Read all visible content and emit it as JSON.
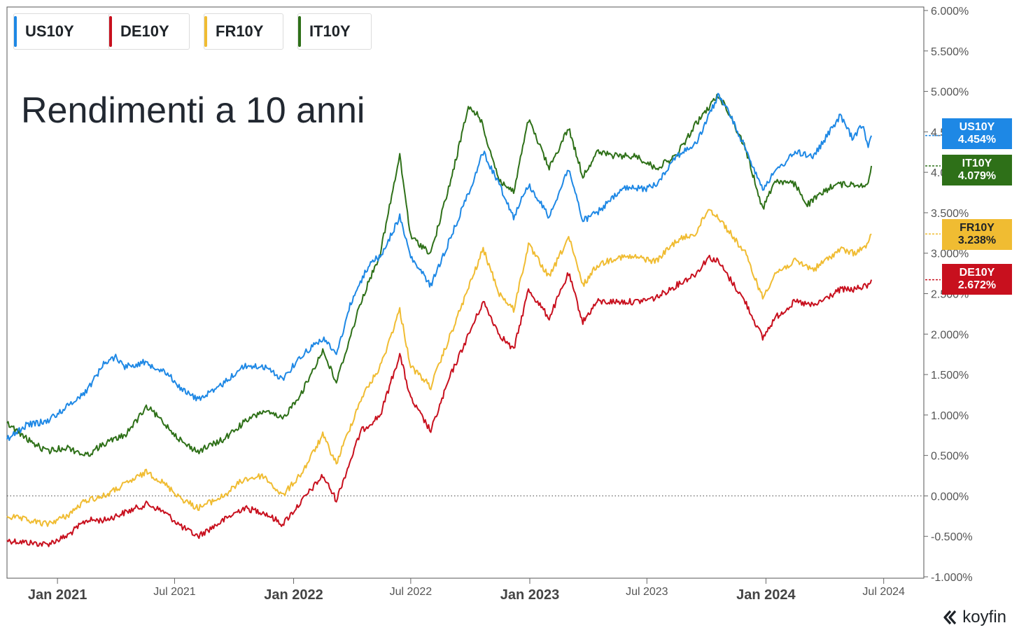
{
  "title": "Rendimenti a 10 anni",
  "brand": {
    "name": "koyfin"
  },
  "legend": [
    {
      "label": "US10Y",
      "color": "#1e88e5"
    },
    {
      "label": "DE10Y",
      "color": "#c8101e"
    },
    {
      "label": "FR10Y",
      "color": "#f0bc32"
    },
    {
      "label": "IT10Y",
      "color": "#2e7018"
    }
  ],
  "end_labels": [
    {
      "name": "US10Y",
      "value": "4.454%",
      "color": "#1e88e5"
    },
    {
      "name": "IT10Y",
      "value": "4.079%",
      "color": "#2e7018"
    },
    {
      "name": "FR10Y",
      "value": "3.238%",
      "color": "#f0bc32"
    },
    {
      "name": "DE10Y",
      "value": "2.672%",
      "color": "#c8101e"
    }
  ],
  "chart_data": {
    "type": "line",
    "title": "Rendimenti a 10 anni",
    "x_axis": {
      "range": [
        "2020-10-15",
        "2024-09-01"
      ],
      "ticks": [
        {
          "date": "2021-01-01",
          "label": "Jan 2021",
          "major": true
        },
        {
          "date": "2021-07-01",
          "label": "Jul 2021",
          "major": false
        },
        {
          "date": "2022-01-01",
          "label": "Jan 2022",
          "major": true
        },
        {
          "date": "2022-07-01",
          "label": "Jul 2022",
          "major": false
        },
        {
          "date": "2023-01-01",
          "label": "Jan 2023",
          "major": true
        },
        {
          "date": "2023-07-01",
          "label": "Jul 2023",
          "major": false
        },
        {
          "date": "2024-01-01",
          "label": "Jan 2024",
          "major": true
        },
        {
          "date": "2024-07-01",
          "label": "Jul 2024",
          "major": false
        }
      ]
    },
    "y_axis": {
      "range": [
        -1,
        6
      ],
      "unit": "%",
      "position": "right",
      "ticks": [
        {
          "value": 6,
          "label": "6.000%"
        },
        {
          "value": 5.5,
          "label": "5.500%"
        },
        {
          "value": 5,
          "label": "5.000%"
        },
        {
          "value": 4.5,
          "label": "4.500%"
        },
        {
          "value": 4,
          "label": "4.000%"
        },
        {
          "value": 3.5,
          "label": "3.500%"
        },
        {
          "value": 3,
          "label": "3.000%"
        },
        {
          "value": 2.5,
          "label": "2.500%"
        },
        {
          "value": 2,
          "label": "2.000%"
        },
        {
          "value": 1.5,
          "label": "1.500%"
        },
        {
          "value": 1,
          "label": "1.000%"
        },
        {
          "value": 0.5,
          "label": "0.500%"
        },
        {
          "value": 0,
          "label": "0.000%"
        },
        {
          "value": -0.5,
          "label": "-0.500%"
        },
        {
          "value": -1,
          "label": "-1.000%"
        }
      ]
    },
    "zero_line": true,
    "grid": false,
    "legend_position": "top-left",
    "series": [
      {
        "name": "US10Y",
        "color": "#1e88e5",
        "points": [
          [
            "2020-10-15",
            0.7
          ],
          [
            "2020-11-15",
            0.88
          ],
          [
            "2020-12-15",
            0.92
          ],
          [
            "2021-01-15",
            1.1
          ],
          [
            "2021-02-15",
            1.3
          ],
          [
            "2021-03-15",
            1.65
          ],
          [
            "2021-04-01",
            1.72
          ],
          [
            "2021-04-15",
            1.6
          ],
          [
            "2021-05-15",
            1.65
          ],
          [
            "2021-06-15",
            1.55
          ],
          [
            "2021-07-15",
            1.3
          ],
          [
            "2021-08-05",
            1.2
          ],
          [
            "2021-09-01",
            1.3
          ],
          [
            "2021-10-15",
            1.6
          ],
          [
            "2021-11-15",
            1.6
          ],
          [
            "2021-12-15",
            1.45
          ],
          [
            "2022-01-15",
            1.75
          ],
          [
            "2022-02-15",
            1.95
          ],
          [
            "2022-03-08",
            1.75
          ],
          [
            "2022-03-31",
            2.4
          ],
          [
            "2022-04-30",
            2.9
          ],
          [
            "2022-05-15",
            2.95
          ],
          [
            "2022-06-14",
            3.45
          ],
          [
            "2022-07-01",
            2.95
          ],
          [
            "2022-08-01",
            2.6
          ],
          [
            "2022-09-01",
            3.2
          ],
          [
            "2022-10-01",
            3.8
          ],
          [
            "2022-10-21",
            4.25
          ],
          [
            "2022-11-15",
            3.85
          ],
          [
            "2022-12-07",
            3.45
          ],
          [
            "2022-12-30",
            3.85
          ],
          [
            "2023-01-31",
            3.45
          ],
          [
            "2023-03-02",
            4.05
          ],
          [
            "2023-03-24",
            3.4
          ],
          [
            "2023-04-15",
            3.5
          ],
          [
            "2023-05-26",
            3.8
          ],
          [
            "2023-06-30",
            3.8
          ],
          [
            "2023-07-15",
            3.85
          ],
          [
            "2023-08-15",
            4.2
          ],
          [
            "2023-09-15",
            4.35
          ],
          [
            "2023-10-19",
            4.95
          ],
          [
            "2023-11-01",
            4.8
          ],
          [
            "2023-11-30",
            4.3
          ],
          [
            "2023-12-27",
            3.8
          ],
          [
            "2024-01-15",
            4.0
          ],
          [
            "2024-02-15",
            4.25
          ],
          [
            "2024-03-15",
            4.2
          ],
          [
            "2024-04-25",
            4.7
          ],
          [
            "2024-05-15",
            4.4
          ],
          [
            "2024-05-29",
            4.6
          ],
          [
            "2024-06-07",
            4.3
          ],
          [
            "2024-06-12",
            4.454
          ]
        ]
      },
      {
        "name": "IT10Y",
        "color": "#2e7018",
        "points": [
          [
            "2020-10-15",
            0.9
          ],
          [
            "2020-11-15",
            0.7
          ],
          [
            "2020-12-15",
            0.55
          ],
          [
            "2021-01-15",
            0.6
          ],
          [
            "2021-02-15",
            0.5
          ],
          [
            "2021-03-15",
            0.65
          ],
          [
            "2021-04-15",
            0.75
          ],
          [
            "2021-05-20",
            1.1
          ],
          [
            "2021-06-15",
            0.9
          ],
          [
            "2021-07-15",
            0.65
          ],
          [
            "2021-08-06",
            0.55
          ],
          [
            "2021-09-15",
            0.7
          ],
          [
            "2021-10-15",
            0.9
          ],
          [
            "2021-11-15",
            1.05
          ],
          [
            "2021-12-15",
            0.95
          ],
          [
            "2022-01-15",
            1.3
          ],
          [
            "2022-02-15",
            1.8
          ],
          [
            "2022-03-08",
            1.4
          ],
          [
            "2022-04-15",
            2.4
          ],
          [
            "2022-05-15",
            3.0
          ],
          [
            "2022-06-14",
            4.2
          ],
          [
            "2022-07-01",
            3.2
          ],
          [
            "2022-08-01",
            3.0
          ],
          [
            "2022-09-01",
            3.9
          ],
          [
            "2022-09-28",
            4.8
          ],
          [
            "2022-10-15",
            4.7
          ],
          [
            "2022-11-15",
            3.9
          ],
          [
            "2022-12-07",
            3.75
          ],
          [
            "2022-12-30",
            4.65
          ],
          [
            "2023-01-31",
            4.05
          ],
          [
            "2023-03-02",
            4.55
          ],
          [
            "2023-03-24",
            3.95
          ],
          [
            "2023-04-15",
            4.25
          ],
          [
            "2023-05-15",
            4.2
          ],
          [
            "2023-06-15",
            4.2
          ],
          [
            "2023-07-15",
            4.05
          ],
          [
            "2023-08-15",
            4.2
          ],
          [
            "2023-09-15",
            4.6
          ],
          [
            "2023-10-19",
            4.95
          ],
          [
            "2023-11-01",
            4.8
          ],
          [
            "2023-11-30",
            4.3
          ],
          [
            "2023-12-27",
            3.55
          ],
          [
            "2024-01-15",
            3.9
          ],
          [
            "2024-02-15",
            3.85
          ],
          [
            "2024-03-05",
            3.6
          ],
          [
            "2024-04-15",
            3.85
          ],
          [
            "2024-05-15",
            3.85
          ],
          [
            "2024-06-07",
            3.85
          ],
          [
            "2024-06-12",
            4.079
          ]
        ]
      },
      {
        "name": "FR10Y",
        "color": "#f0bc32",
        "points": [
          [
            "2020-10-15",
            -0.25
          ],
          [
            "2020-12-15",
            -0.35
          ],
          [
            "2021-01-15",
            -0.25
          ],
          [
            "2021-02-15",
            -0.05
          ],
          [
            "2021-03-15",
            0.0
          ],
          [
            "2021-05-20",
            0.3
          ],
          [
            "2021-06-15",
            0.15
          ],
          [
            "2021-07-15",
            -0.05
          ],
          [
            "2021-08-06",
            -0.15
          ],
          [
            "2021-09-15",
            0.0
          ],
          [
            "2021-10-15",
            0.2
          ],
          [
            "2021-11-15",
            0.25
          ],
          [
            "2021-12-15",
            0.0
          ],
          [
            "2022-01-15",
            0.3
          ],
          [
            "2022-02-15",
            0.75
          ],
          [
            "2022-03-08",
            0.4
          ],
          [
            "2022-04-15",
            1.2
          ],
          [
            "2022-05-15",
            1.6
          ],
          [
            "2022-06-14",
            2.3
          ],
          [
            "2022-07-01",
            1.6
          ],
          [
            "2022-08-01",
            1.35
          ],
          [
            "2022-09-01",
            2.0
          ],
          [
            "2022-10-21",
            3.05
          ],
          [
            "2022-11-15",
            2.5
          ],
          [
            "2022-12-07",
            2.3
          ],
          [
            "2022-12-30",
            3.1
          ],
          [
            "2023-01-31",
            2.7
          ],
          [
            "2023-03-02",
            3.2
          ],
          [
            "2023-03-24",
            2.6
          ],
          [
            "2023-04-15",
            2.85
          ],
          [
            "2023-05-15",
            2.95
          ],
          [
            "2023-06-15",
            2.95
          ],
          [
            "2023-07-15",
            2.9
          ],
          [
            "2023-08-15",
            3.15
          ],
          [
            "2023-09-15",
            3.25
          ],
          [
            "2023-10-04",
            3.55
          ],
          [
            "2023-10-19",
            3.45
          ],
          [
            "2023-11-30",
            3.0
          ],
          [
            "2023-12-27",
            2.45
          ],
          [
            "2024-01-15",
            2.75
          ],
          [
            "2024-02-15",
            2.9
          ],
          [
            "2024-03-15",
            2.8
          ],
          [
            "2024-04-25",
            3.05
          ],
          [
            "2024-05-15",
            3.0
          ],
          [
            "2024-06-07",
            3.1
          ],
          [
            "2024-06-12",
            3.238
          ]
        ]
      },
      {
        "name": "DE10Y",
        "color": "#c8101e",
        "points": [
          [
            "2020-10-15",
            -0.55
          ],
          [
            "2020-12-15",
            -0.6
          ],
          [
            "2021-01-15",
            -0.5
          ],
          [
            "2021-02-15",
            -0.3
          ],
          [
            "2021-03-15",
            -0.3
          ],
          [
            "2021-05-20",
            -0.1
          ],
          [
            "2021-06-15",
            -0.2
          ],
          [
            "2021-07-15",
            -0.4
          ],
          [
            "2021-08-06",
            -0.5
          ],
          [
            "2021-09-15",
            -0.3
          ],
          [
            "2021-10-15",
            -0.15
          ],
          [
            "2021-11-15",
            -0.2
          ],
          [
            "2021-12-15",
            -0.35
          ],
          [
            "2022-01-15",
            -0.05
          ],
          [
            "2022-02-15",
            0.25
          ],
          [
            "2022-03-08",
            -0.05
          ],
          [
            "2022-04-15",
            0.8
          ],
          [
            "2022-05-15",
            1.0
          ],
          [
            "2022-06-14",
            1.75
          ],
          [
            "2022-07-01",
            1.2
          ],
          [
            "2022-08-01",
            0.8
          ],
          [
            "2022-09-01",
            1.5
          ],
          [
            "2022-10-21",
            2.4
          ],
          [
            "2022-11-15",
            2.0
          ],
          [
            "2022-12-07",
            1.8
          ],
          [
            "2022-12-30",
            2.55
          ],
          [
            "2023-01-31",
            2.2
          ],
          [
            "2023-03-02",
            2.75
          ],
          [
            "2023-03-24",
            2.15
          ],
          [
            "2023-04-15",
            2.4
          ],
          [
            "2023-05-15",
            2.4
          ],
          [
            "2023-06-15",
            2.4
          ],
          [
            "2023-07-15",
            2.45
          ],
          [
            "2023-08-15",
            2.6
          ],
          [
            "2023-09-15",
            2.75
          ],
          [
            "2023-10-04",
            2.95
          ],
          [
            "2023-10-19",
            2.9
          ],
          [
            "2023-11-30",
            2.4
          ],
          [
            "2023-12-27",
            1.95
          ],
          [
            "2024-01-15",
            2.2
          ],
          [
            "2024-02-15",
            2.4
          ],
          [
            "2024-03-15",
            2.35
          ],
          [
            "2024-04-25",
            2.55
          ],
          [
            "2024-05-15",
            2.55
          ],
          [
            "2024-06-07",
            2.6
          ],
          [
            "2024-06-12",
            2.672
          ]
        ]
      }
    ]
  }
}
